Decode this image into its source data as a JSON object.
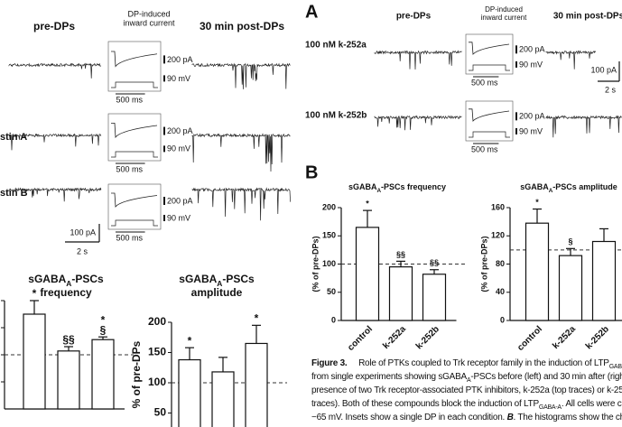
{
  "left_traces": {
    "column_titles": {
      "pre": "pre-DPs",
      "inset_line1": "DP-induced",
      "inset_line2": "inward current",
      "post": "30 min post-DPs"
    },
    "row_labels": [
      "stin A",
      "stin B"
    ],
    "scale": {
      "current": "100 pA",
      "time": "2 s"
    }
  },
  "right_traces": {
    "panel": "A",
    "column_titles": {
      "pre": "pre-DPs",
      "inset_line1": "DP-induced",
      "inset_line2": "inward current",
      "post": "30 min post-DPs"
    },
    "row_labels": [
      "100 nM k-252a",
      "100 nM k-252b"
    ],
    "scale": {
      "current": "100 pA",
      "time": "2 s"
    }
  },
  "insets": [
    {
      "current": "200 pA",
      "voltage": "90 mV",
      "time": "500 ms"
    },
    {
      "current": "200 pA",
      "voltage": "90 mV",
      "time": "500 ms"
    },
    {
      "current": "200 pA",
      "voltage": "90 mV",
      "time": "500 ms"
    },
    {
      "current": "200 pA",
      "voltage": "90 mV",
      "time": "500 ms"
    },
    {
      "current": "200 pA",
      "voltage": "90 mV",
      "time": "500 ms"
    }
  ],
  "panel_b_label": "B",
  "chart_data": [
    {
      "type": "bar",
      "title": [
        [
          {
            "text": "sGABA"
          },
          {
            "sub": "A"
          },
          {
            "text": "-PSCs"
          }
        ],
        [
          {
            "text": "frequency"
          }
        ]
      ],
      "values": [
        175,
        107,
        128
      ],
      "errors": [
        25,
        8,
        5
      ],
      "annotations": [
        [
          "*"
        ],
        [
          "§§"
        ],
        [
          "*",
          "§"
        ]
      ],
      "reference_line": 100,
      "ylim": [
        0,
        200
      ],
      "yticks": [
        50,
        100,
        150,
        200
      ],
      "color": "#ffffff"
    },
    {
      "type": "bar",
      "title": [
        [
          {
            "text": "sGABA"
          },
          {
            "sub": "A"
          },
          {
            "text": "-PSCs"
          }
        ],
        [
          {
            "text": "amplitude"
          }
        ]
      ],
      "y_label": "% of pre-DPs",
      "values": [
        138,
        118,
        165
      ],
      "errors": [
        20,
        24,
        30
      ],
      "annotations": [
        [
          "*"
        ],
        [],
        [
          "*"
        ]
      ],
      "reference_line": 100,
      "ylim": [
        0,
        200
      ],
      "yticks": [
        50,
        100,
        150,
        200
      ],
      "color": "#ffffff"
    },
    {
      "type": "bar",
      "title": [
        [
          {
            "text": "sGABA"
          },
          {
            "sub": "A"
          },
          {
            "text": "-PSCs frequency"
          }
        ]
      ],
      "y_label": "(% of pre-DPs)",
      "categories": [
        "control",
        "k-252a",
        "k-252b"
      ],
      "values": [
        165,
        95,
        82
      ],
      "errors": [
        30,
        10,
        8
      ],
      "annotations": [
        [
          "*"
        ],
        [
          "§§"
        ],
        [
          "§§"
        ]
      ],
      "reference_line": 100,
      "ylim": [
        0,
        200
      ],
      "yticks": [
        0,
        50,
        100,
        150,
        200
      ],
      "color": "#ffffff"
    },
    {
      "type": "bar",
      "title": [
        [
          {
            "text": "sGABA"
          },
          {
            "sub": "A"
          },
          {
            "text": "-PSCs amplitude"
          }
        ]
      ],
      "y_label": "(% of pre-DPs)",
      "categories": [
        "control",
        "k-252a",
        "k-252b"
      ],
      "values": [
        138,
        92,
        112
      ],
      "errors": [
        20,
        10,
        18
      ],
      "annotations": [
        [
          "*"
        ],
        [
          "§"
        ],
        []
      ],
      "reference_line": 100,
      "ylim": [
        0,
        160
      ],
      "yticks": [
        0,
        40,
        80,
        120,
        160
      ],
      "color": "#ffffff"
    }
  ],
  "caption": {
    "lines": [
      [
        {
          "bold": "Figure 3."
        },
        {
          "text": "     Role of PTKs coupled to Trk receptor family in the induction of LTP"
        },
        {
          "sub": "GABA-A"
        },
        {
          "text": ". "
        },
        {
          "bolditalic": "A"
        },
        {
          "text": ", Tra"
        }
      ],
      [
        {
          "text": "from single experiments showing sGABA"
        },
        {
          "sub": "A"
        },
        {
          "text": "-PSCs before (left) and 30 min after (right) DPs, in t"
        }
      ],
      [
        {
          "text": "presence of two Trk receptor-associated PTK inhibitors, k-252a (top traces) or k-252b (bott"
        }
      ],
      [
        {
          "text": "traces). Both of these compounds block the induction of LTP"
        },
        {
          "sub": "GABA-A"
        },
        {
          "text": ". All cells were clamped"
        }
      ],
      [
        {
          "text": "−65 mV. Insets show a single DP in each condition. "
        },
        {
          "bolditalic": "B"
        },
        {
          "text": ". The histograms show the change"
        }
      ]
    ]
  }
}
